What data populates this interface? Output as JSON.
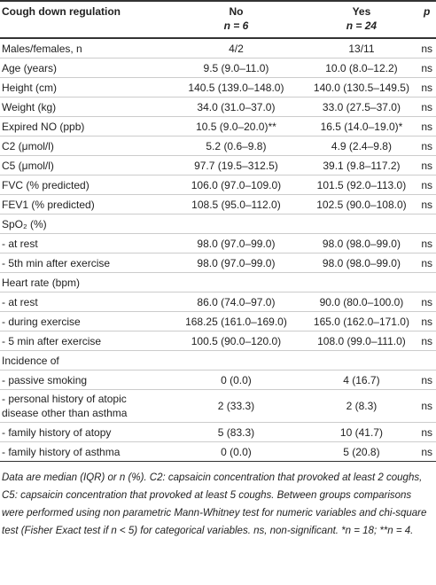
{
  "table": {
    "header": {
      "label": "Cough down regulation",
      "no": "No",
      "no_n": "n = 6",
      "yes": "Yes",
      "yes_n": "n = 24",
      "p": "p"
    },
    "rows": [
      {
        "label": "Males/females, n",
        "no": "4/2",
        "yes": "13/11",
        "p": "ns"
      },
      {
        "label": "Age (years)",
        "no": "9.5 (9.0–11.0)",
        "yes": "10.0 (8.0–12.2)",
        "p": "ns"
      },
      {
        "label": "Height (cm)",
        "no": "140.5 (139.0–148.0)",
        "yes": "140.0 (130.5–149.5)",
        "p": "ns"
      },
      {
        "label": "Weight (kg)",
        "no": "34.0 (31.0–37.0)",
        "yes": "33.0 (27.5–37.0)",
        "p": "ns"
      },
      {
        "label": "Expired NO (ppb)",
        "no": "10.5 (9.0–20.0)**",
        "yes": "16.5 (14.0–19.0)*",
        "p": "ns"
      },
      {
        "label": "C2 (μmol/l)",
        "no": "5.2 (0.6–9.8)",
        "yes": "4.9 (2.4–9.8)",
        "p": "ns"
      },
      {
        "label": "C5 (μmol/l)",
        "no": "97.7 (19.5–312.5)",
        "yes": "39.1 (9.8–117.2)",
        "p": "ns"
      },
      {
        "label": "FVC (% predicted)",
        "no": "106.0 (97.0–109.0)",
        "yes": "101.5 (92.0–113.0)",
        "p": "ns"
      },
      {
        "label": "FEV1 (% predicted)",
        "no": "108.5 (95.0–112.0)",
        "yes": "102.5 (90.0–108.0)",
        "p": "ns"
      },
      {
        "label": "SpO₂ (%)"
      },
      {
        "label": "- at rest",
        "no": "98.0 (97.0–99.0)",
        "yes": "98.0 (98.0–99.0)",
        "p": "ns"
      },
      {
        "label": "- 5th min after exercise",
        "no": "98.0 (97.0–99.0)",
        "yes": "98.0 (98.0–99.0)",
        "p": "ns"
      },
      {
        "label": "Heart rate (bpm)"
      },
      {
        "label": "- at rest",
        "no": "86.0 (74.0–97.0)",
        "yes": "90.0 (80.0–100.0)",
        "p": "ns"
      },
      {
        "label": "- during exercise",
        "no": "168.25 (161.0–169.0)",
        "yes": "165.0 (162.0–171.0)",
        "p": "ns"
      },
      {
        "label": "- 5 min after exercise",
        "no": "100.5 (90.0–120.0)",
        "yes": "108.0 (99.0–111.0)",
        "p": "ns"
      },
      {
        "label": "Incidence of"
      },
      {
        "label": "- passive smoking",
        "no": "0 (0.0)",
        "yes": "4 (16.7)",
        "p": "ns"
      },
      {
        "label": "- personal history of atopic disease other than asthma",
        "no": "2 (33.3)",
        "yes": "2 (8.3)",
        "p": "ns"
      },
      {
        "label": "- family history of atopy",
        "no": "5 (83.3)",
        "yes": "10 (41.7)",
        "p": "ns"
      },
      {
        "label": "- family history of asthma",
        "no": "0 (0.0)",
        "yes": "5 (20.8)",
        "p": "ns"
      }
    ],
    "footnote": "Data are median (IQR) or n (%). C2: capsaicin concentration that provoked at least 2 coughs, C5: capsaicin concentration that provoked at least 5 coughs. Between groups comparisons were performed using non parametric Mann-Whitney test for numeric variables and chi-square test (Fisher Exact test if n < 5) for categorical variables. ns, non-significant. *n = 18; **n = 4."
  }
}
